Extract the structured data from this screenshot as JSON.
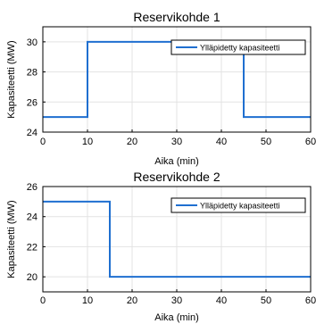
{
  "chart_data": [
    {
      "type": "line",
      "title": "Reservikohde 1",
      "xlabel": "Aika (min)",
      "ylabel": "Kapasiteetti (MW)",
      "xlim": [
        0,
        60
      ],
      "ylim": [
        24,
        31
      ],
      "xticks": [
        "0",
        "10",
        "20",
        "30",
        "40",
        "50",
        "60"
      ],
      "yticks": [
        "24",
        "26",
        "28",
        "30"
      ],
      "grid": true,
      "legend_position": "top-right",
      "color": "#1f6fd0",
      "series": [
        {
          "name": "Ylläpidetty kapasiteetti",
          "x": [
            0,
            10,
            10,
            45,
            45,
            60
          ],
          "y": [
            25,
            25,
            30,
            30,
            25,
            25
          ]
        }
      ]
    },
    {
      "type": "line",
      "title": "Reservikohde 2",
      "xlabel": "Aika (min)",
      "ylabel": "Kapasiteetti (MW)",
      "xlim": [
        0,
        60
      ],
      "ylim": [
        19,
        26
      ],
      "xticks": [
        "0",
        "10",
        "20",
        "30",
        "40",
        "50",
        "60"
      ],
      "yticks": [
        "20",
        "22",
        "24",
        "26"
      ],
      "grid": true,
      "legend_position": "top-right",
      "color": "#1f6fd0",
      "series": [
        {
          "name": "Ylläpidetty kapasiteetti",
          "x": [
            0,
            15,
            15,
            60
          ],
          "y": [
            25,
            25,
            20,
            20
          ]
        }
      ]
    }
  ]
}
